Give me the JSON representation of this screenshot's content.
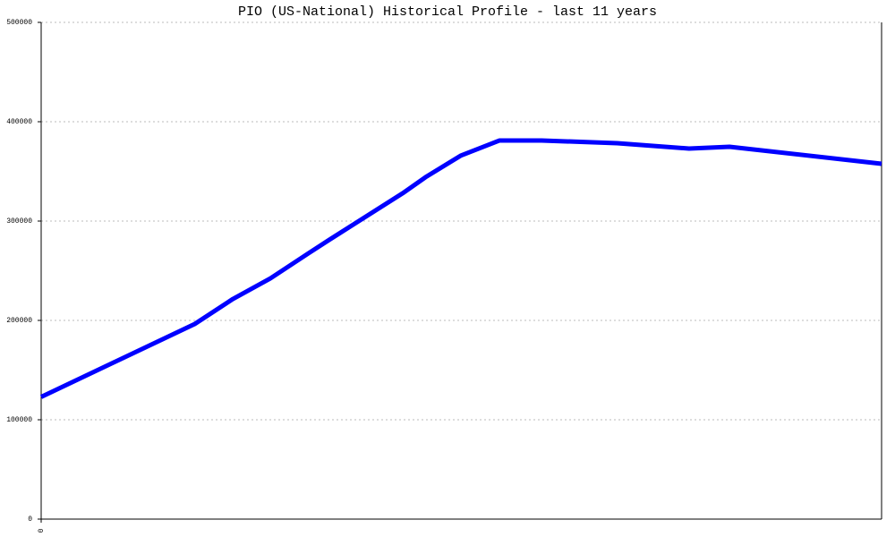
{
  "chart_data": {
    "type": "line",
    "title": "PIO (US-National) Historical Profile - last 11 years",
    "x": [
      0,
      2.01,
      2.51,
      3.0,
      3.5,
      3.77,
      4.73,
      5.03,
      5.49,
      6.0,
      6.55,
      7.54,
      8.48,
      9.01,
      11
    ],
    "series": [
      {
        "name": "PIO",
        "color": "#0000ff",
        "values": [
          123000,
          196400,
          221600,
          242300,
          267600,
          281100,
          327900,
          344100,
          365800,
          381100,
          381100,
          378400,
          373000,
          374800,
          357700
        ]
      }
    ],
    "xlim": [
      0,
      11
    ],
    "xticks": [
      0
    ],
    "ylim": [
      0,
      500000
    ],
    "yticks": [
      0,
      100000,
      200000,
      300000,
      400000,
      500000
    ],
    "grid": true
  }
}
